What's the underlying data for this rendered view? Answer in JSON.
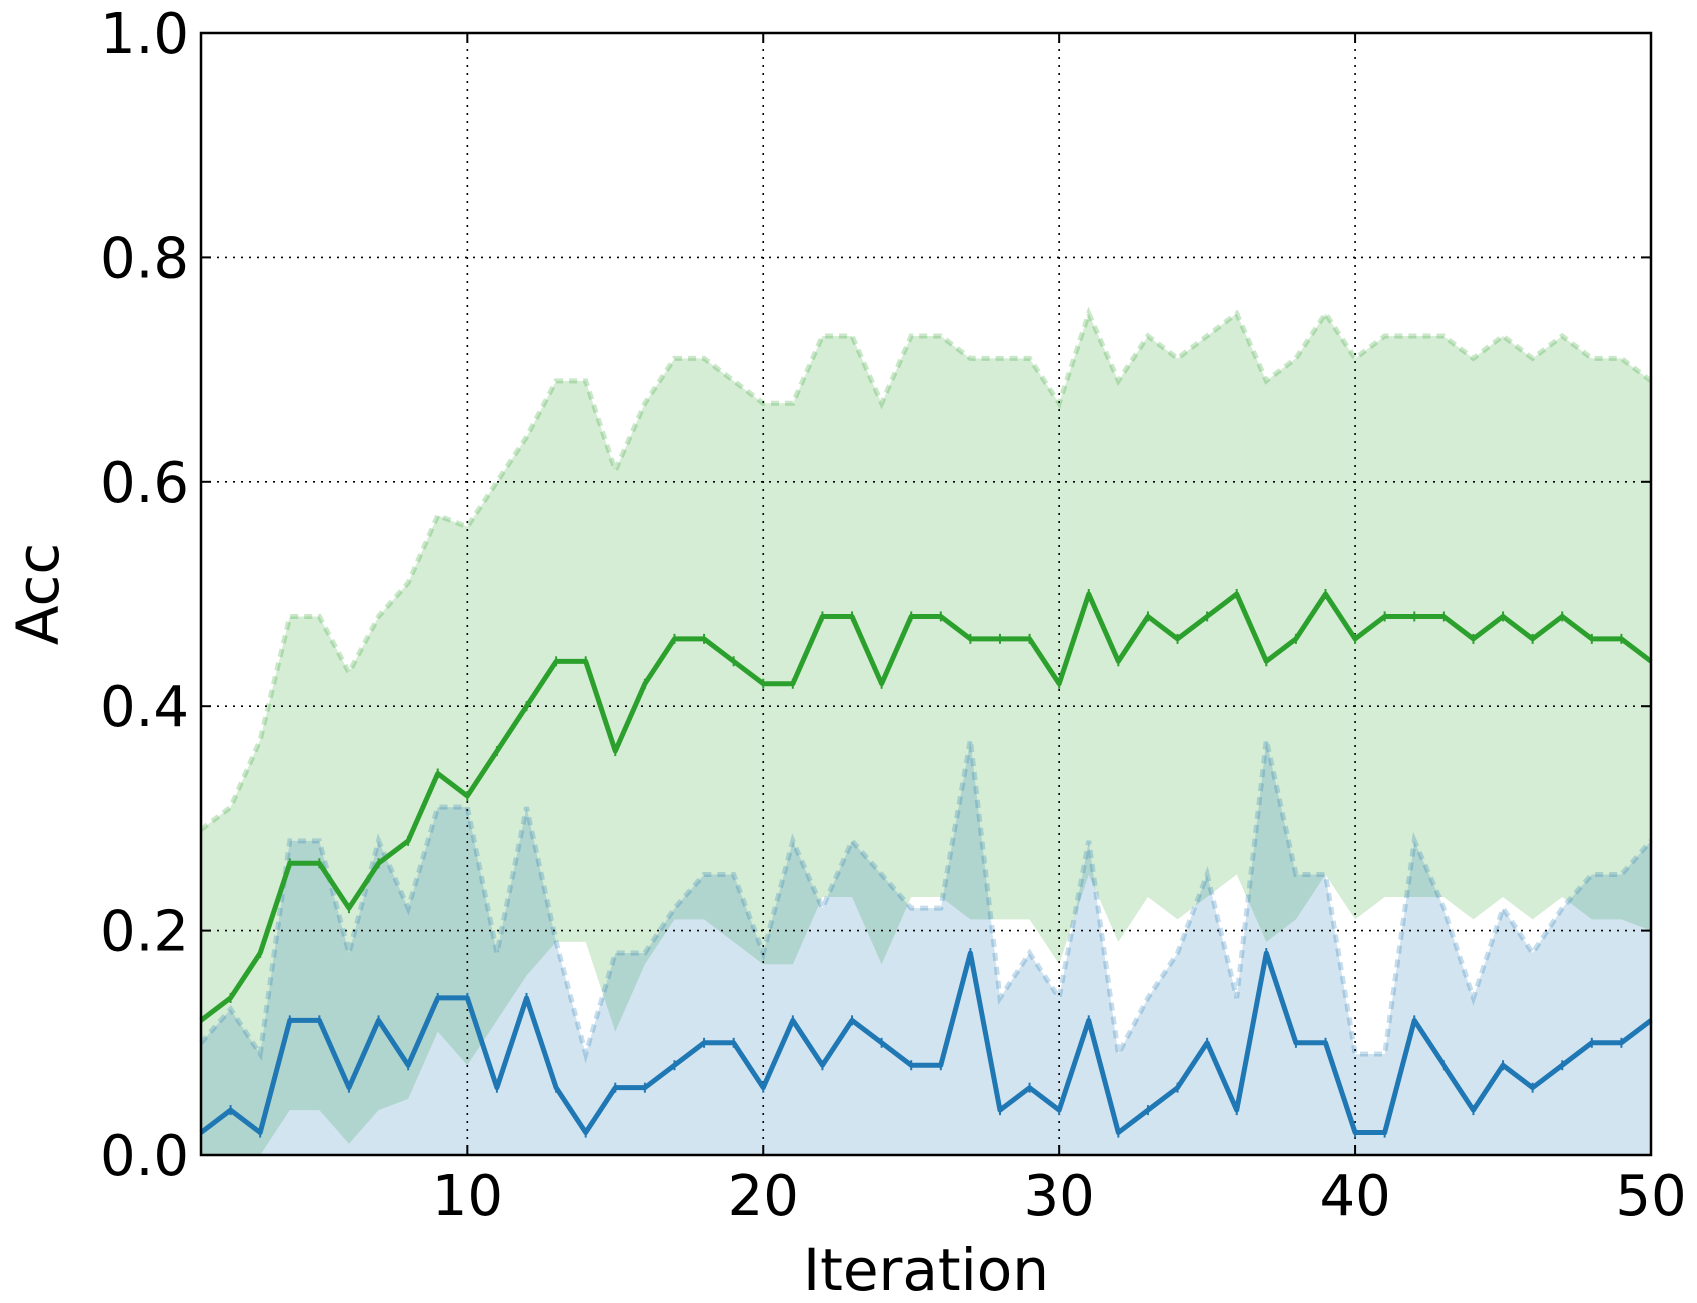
{
  "chart_data": {
    "type": "line",
    "title": "",
    "xlabel": "Iteration",
    "ylabel": "Acc",
    "xlim": [
      1,
      50
    ],
    "ylim": [
      0,
      1.0
    ],
    "xticks": [
      10,
      20,
      30,
      40,
      50
    ],
    "xtick_labels": [
      "10",
      "20",
      "30",
      "40",
      "50"
    ],
    "yticks": [
      0,
      0.2,
      0.4,
      0.6,
      0.8,
      1.0
    ],
    "ytick_labels": [
      "0.0",
      "0.2",
      "0.4",
      "0.6",
      "0.8",
      "1.0"
    ],
    "grid": true,
    "x": [
      1,
      2,
      3,
      4,
      5,
      6,
      7,
      8,
      9,
      10,
      11,
      12,
      13,
      14,
      15,
      16,
      17,
      18,
      19,
      20,
      21,
      22,
      23,
      24,
      25,
      26,
      27,
      28,
      29,
      30,
      31,
      32,
      33,
      34,
      35,
      36,
      37,
      38,
      39,
      40,
      41,
      42,
      43,
      44,
      45,
      46,
      47,
      48,
      49,
      50
    ],
    "series": [
      {
        "color": "#2ca02c",
        "mean": [
          0.12,
          0.14,
          0.18,
          0.26,
          0.26,
          0.22,
          0.26,
          0.28,
          0.34,
          0.32,
          0.36,
          0.4,
          0.44,
          0.44,
          0.36,
          0.42,
          0.46,
          0.46,
          0.44,
          0.42,
          0.42,
          0.48,
          0.48,
          0.42,
          0.48,
          0.48,
          0.46,
          0.46,
          0.46,
          0.42,
          0.5,
          0.44,
          0.48,
          0.46,
          0.48,
          0.5,
          0.44,
          0.46,
          0.5,
          0.46,
          0.48,
          0.48,
          0.48,
          0.46,
          0.48,
          0.46,
          0.48,
          0.46,
          0.46,
          0.44
        ],
        "upper": [
          0.29,
          0.31,
          0.37,
          0.48,
          0.48,
          0.43,
          0.48,
          0.51,
          0.57,
          0.56,
          0.6,
          0.64,
          0.69,
          0.69,
          0.61,
          0.67,
          0.71,
          0.71,
          0.69,
          0.67,
          0.67,
          0.73,
          0.73,
          0.67,
          0.73,
          0.73,
          0.71,
          0.71,
          0.71,
          0.67,
          0.75,
          0.69,
          0.73,
          0.71,
          0.73,
          0.75,
          0.69,
          0.71,
          0.75,
          0.71,
          0.73,
          0.73,
          0.73,
          0.71,
          0.73,
          0.71,
          0.73,
          0.71,
          0.71,
          0.69
        ],
        "lower": [
          0.0,
          0.0,
          0.0,
          0.04,
          0.04,
          0.01,
          0.04,
          0.05,
          0.11,
          0.08,
          0.12,
          0.16,
          0.19,
          0.19,
          0.11,
          0.17,
          0.21,
          0.21,
          0.19,
          0.17,
          0.17,
          0.23,
          0.23,
          0.17,
          0.23,
          0.23,
          0.21,
          0.21,
          0.21,
          0.17,
          0.25,
          0.19,
          0.23,
          0.21,
          0.23,
          0.25,
          0.19,
          0.21,
          0.25,
          0.21,
          0.23,
          0.23,
          0.23,
          0.21,
          0.23,
          0.21,
          0.23,
          0.21,
          0.21,
          0.2
        ]
      },
      {
        "color": "#1f77b4",
        "mean": [
          0.02,
          0.04,
          0.02,
          0.12,
          0.12,
          0.06,
          0.12,
          0.08,
          0.14,
          0.14,
          0.06,
          0.14,
          0.06,
          0.02,
          0.06,
          0.06,
          0.08,
          0.1,
          0.1,
          0.06,
          0.12,
          0.08,
          0.12,
          0.1,
          0.08,
          0.08,
          0.18,
          0.04,
          0.06,
          0.04,
          0.12,
          0.02,
          0.04,
          0.06,
          0.1,
          0.04,
          0.18,
          0.1,
          0.1,
          0.02,
          0.02,
          0.12,
          0.08,
          0.04,
          0.08,
          0.06,
          0.08,
          0.1,
          0.1,
          0.12
        ],
        "upper": [
          0.1,
          0.13,
          0.09,
          0.28,
          0.28,
          0.18,
          0.28,
          0.22,
          0.31,
          0.31,
          0.18,
          0.31,
          0.19,
          0.09,
          0.18,
          0.18,
          0.22,
          0.25,
          0.25,
          0.18,
          0.28,
          0.22,
          0.28,
          0.25,
          0.22,
          0.22,
          0.37,
          0.14,
          0.18,
          0.14,
          0.28,
          0.09,
          0.14,
          0.18,
          0.25,
          0.14,
          0.37,
          0.25,
          0.25,
          0.09,
          0.09,
          0.28,
          0.22,
          0.14,
          0.22,
          0.18,
          0.22,
          0.25,
          0.25,
          0.28
        ],
        "lower": [
          0.0,
          0.0,
          0.0,
          0.0,
          0.0,
          0.0,
          0.0,
          0.0,
          0.0,
          0.0,
          0.0,
          0.0,
          0.0,
          0.0,
          0.0,
          0.0,
          0.0,
          0.0,
          0.0,
          0.0,
          0.0,
          0.0,
          0.0,
          0.0,
          0.0,
          0.0,
          0.0,
          0.0,
          0.0,
          0.0,
          0.0,
          0.0,
          0.0,
          0.0,
          0.0,
          0.0,
          0.0,
          0.0,
          0.0,
          0.0,
          0.0,
          0.0,
          0.0,
          0.0,
          0.0,
          0.0,
          0.0,
          0.0,
          0.0,
          0.0
        ]
      }
    ]
  }
}
